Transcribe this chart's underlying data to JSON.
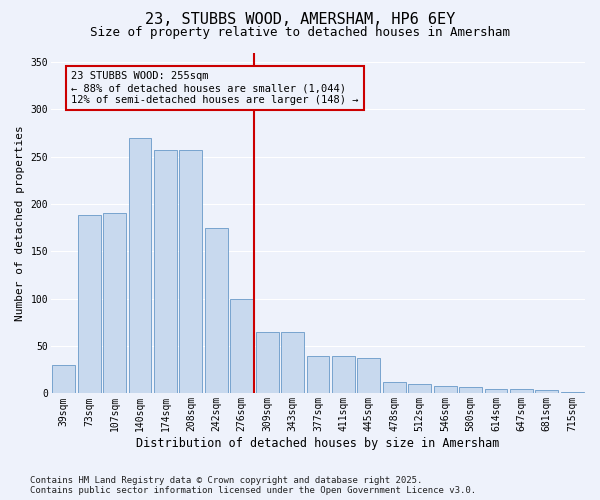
{
  "title": "23, STUBBS WOOD, AMERSHAM, HP6 6EY",
  "subtitle": "Size of property relative to detached houses in Amersham",
  "xlabel": "Distribution of detached houses by size in Amersham",
  "ylabel": "Number of detached properties",
  "categories": [
    "39sqm",
    "73sqm",
    "107sqm",
    "140sqm",
    "174sqm",
    "208sqm",
    "242sqm",
    "276sqm",
    "309sqm",
    "343sqm",
    "377sqm",
    "411sqm",
    "445sqm",
    "478sqm",
    "512sqm",
    "546sqm",
    "580sqm",
    "614sqm",
    "647sqm",
    "681sqm",
    "715sqm"
  ],
  "values": [
    30,
    188,
    190,
    270,
    257,
    257,
    175,
    100,
    65,
    65,
    40,
    40,
    37,
    12,
    10,
    8,
    7,
    5,
    5,
    4,
    2
  ],
  "bar_color": "#c8d9ee",
  "bar_edgecolor": "#6899c8",
  "vline_color": "#cc0000",
  "vline_index": 7.5,
  "annotation_text": "23 STUBBS WOOD: 255sqm\n← 88% of detached houses are smaller (1,044)\n12% of semi-detached houses are larger (148) →",
  "annotation_box_edgecolor": "#cc0000",
  "ylim": [
    0,
    360
  ],
  "yticks": [
    0,
    50,
    100,
    150,
    200,
    250,
    300,
    350
  ],
  "background_color": "#eef2fb",
  "grid_color": "#ffffff",
  "footer_line1": "Contains HM Land Registry data © Crown copyright and database right 2025.",
  "footer_line2": "Contains public sector information licensed under the Open Government Licence v3.0.",
  "title_fontsize": 11,
  "subtitle_fontsize": 9,
  "xlabel_fontsize": 8.5,
  "ylabel_fontsize": 8,
  "tick_fontsize": 7,
  "annotation_fontsize": 7.5,
  "footer_fontsize": 6.5
}
